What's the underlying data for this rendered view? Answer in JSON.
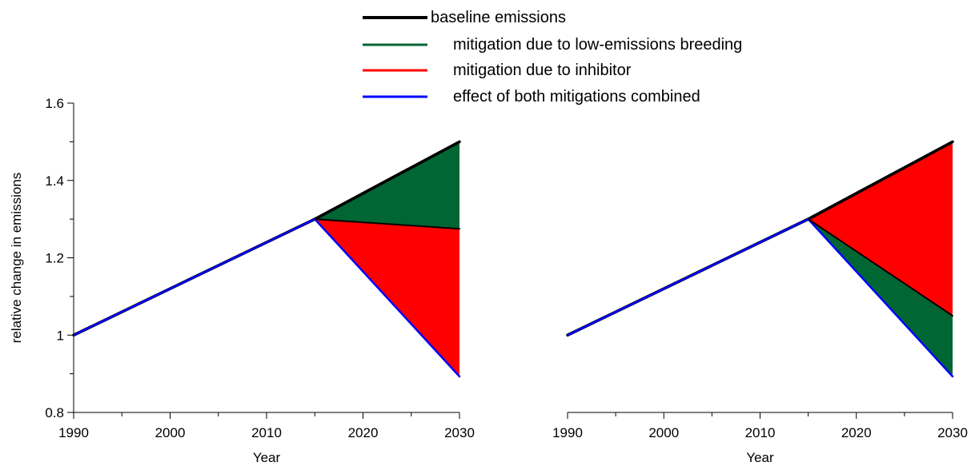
{
  "legend": {
    "placement": "top-center",
    "items": [
      {
        "label": "baseline emissions",
        "color": "#000000"
      },
      {
        "label": "mitigation due to low-emissions breeding",
        "color": "#006633"
      },
      {
        "label": "mitigation due to inhibitor",
        "color": "#ff0000"
      },
      {
        "label": "effect of both mitigations combined",
        "color": "#0000ff"
      }
    ]
  },
  "chart_data": [
    {
      "type": "area",
      "panel": "left",
      "xlabel": "Year",
      "ylabel": "relative change in emissions",
      "xlim": [
        1990,
        2030
      ],
      "ylim": [
        0.8,
        1.6
      ],
      "x_ticks": [
        1990,
        2000,
        2010,
        2020,
        2030
      ],
      "y_ticks": [
        0.8,
        1,
        1.2,
        1.4,
        1.6
      ],
      "y_tick_labels": [
        "0.8",
        "1",
        "1.2",
        "1.4",
        "1.6"
      ],
      "show_y_axis": true,
      "grid": false,
      "series": [
        {
          "name": "baseline emissions",
          "color": "#000000",
          "x": [
            1990,
            2015,
            2030
          ],
          "y": [
            1.0,
            1.3,
            1.5
          ]
        },
        {
          "name": "",
          "color": "#000000",
          "x": [
            2015,
            2030
          ],
          "y": [
            1.3,
            1.275
          ]
        },
        {
          "name": "effect of both mitigations combined",
          "color": "#0000ff",
          "x": [
            1990,
            2015,
            2030
          ],
          "y": [
            1.0,
            1.3,
            0.893
          ]
        }
      ],
      "areas": [
        {
          "name": "mitigation due to low-emissions breeding",
          "color": "#006633",
          "x": [
            2015,
            2030
          ],
          "upper": [
            1.3,
            1.5
          ],
          "lower": [
            1.3,
            1.275
          ]
        },
        {
          "name": "mitigation due to inhibitor",
          "color": "#ff0000",
          "x": [
            2015,
            2030
          ],
          "upper": [
            1.3,
            1.275
          ],
          "lower": [
            1.3,
            0.893
          ]
        }
      ]
    },
    {
      "type": "area",
      "panel": "right",
      "xlabel": "Year",
      "ylabel": "",
      "xlim": [
        1990,
        2030
      ],
      "ylim": [
        0.8,
        1.6
      ],
      "x_ticks": [
        1990,
        2000,
        2010,
        2020,
        2030
      ],
      "y_ticks": [],
      "y_tick_labels": [],
      "show_y_axis": false,
      "grid": false,
      "series": [
        {
          "name": "baseline emissions",
          "color": "#000000",
          "x": [
            1990,
            2015,
            2030
          ],
          "y": [
            1.0,
            1.3,
            1.5
          ]
        },
        {
          "name": "",
          "color": "#000000",
          "x": [
            2015,
            2030
          ],
          "y": [
            1.3,
            1.05
          ]
        },
        {
          "name": "effect of both mitigations combined",
          "color": "#0000ff",
          "x": [
            1990,
            2015,
            2030
          ],
          "y": [
            1.0,
            1.3,
            0.893
          ]
        }
      ],
      "areas": [
        {
          "name": "mitigation due to inhibitor",
          "color": "#ff0000",
          "x": [
            2015,
            2030
          ],
          "upper": [
            1.3,
            1.5
          ],
          "lower": [
            1.3,
            1.05
          ]
        },
        {
          "name": "mitigation due to low-emissions breeding",
          "color": "#006633",
          "x": [
            2015,
            2030
          ],
          "upper": [
            1.3,
            1.05
          ],
          "lower": [
            1.3,
            0.893
          ]
        }
      ]
    }
  ]
}
